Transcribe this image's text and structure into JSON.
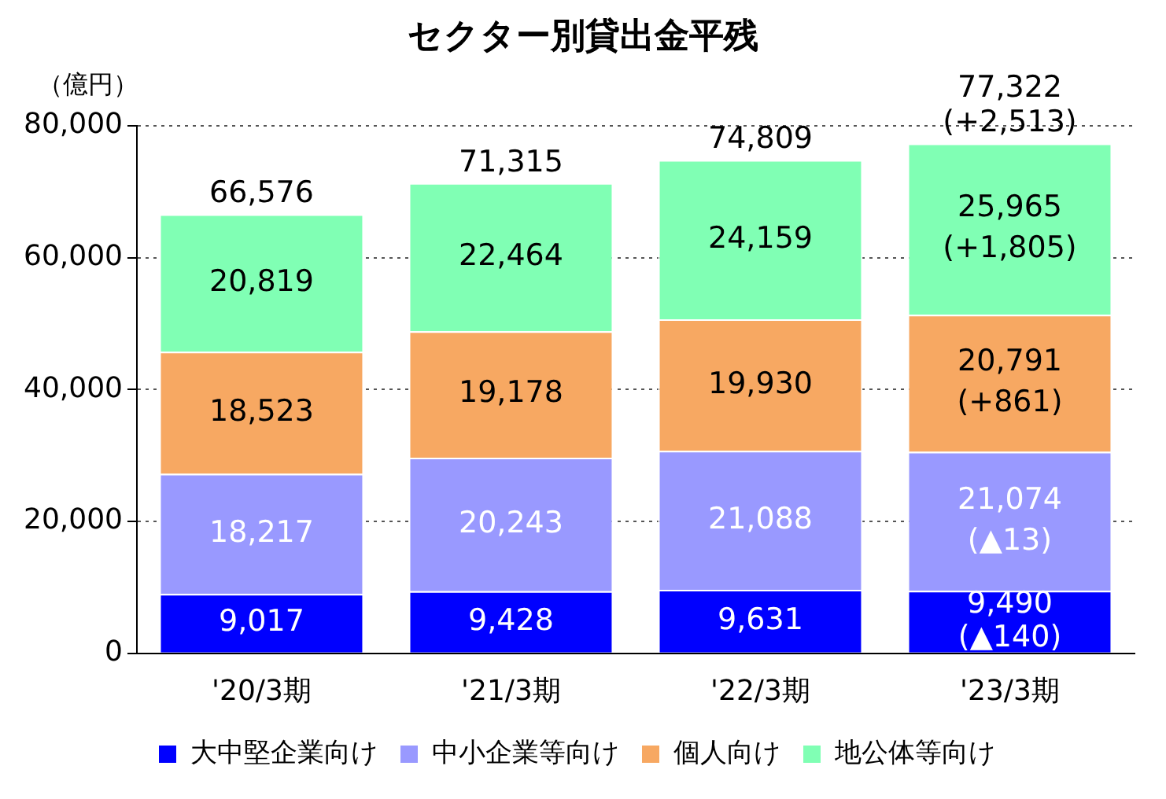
{
  "chart_data": {
    "type": "bar",
    "stacked": true,
    "title": "セクター別貸出金平残",
    "ylabel": "（億円）",
    "categories": [
      "'20/3期",
      "'21/3期",
      "'22/3期",
      "'23/3期"
    ],
    "series": [
      {
        "name": "大中堅企業向け",
        "color": "#0000ff",
        "values": [
          9017,
          9428,
          9631,
          9490
        ],
        "value_labels": [
          "9,017",
          "9,428",
          "9,631",
          "9,490\n(▲140)"
        ]
      },
      {
        "name": "中小企業等向け",
        "color": "#9999ff",
        "values": [
          18217,
          20243,
          21088,
          21074
        ],
        "value_labels": [
          "18,217",
          "20,243",
          "21,088",
          "21,074\n(▲13)"
        ]
      },
      {
        "name": "個人向け",
        "color": "#f7a862",
        "values": [
          18523,
          19178,
          19930,
          20791
        ],
        "value_labels": [
          "18,523",
          "19,178",
          "19,930",
          "20,791\n(+861)"
        ]
      },
      {
        "name": "地公体等向け",
        "color": "#80ffb4",
        "values": [
          20819,
          22464,
          24159,
          25965
        ],
        "value_labels": [
          "20,819",
          "22,464",
          "24,159",
          "25,965\n(+1,805)"
        ]
      }
    ],
    "totals": [
      "66,576",
      "71,315",
      "74,809",
      "77,322\n(+2,513)"
    ],
    "ylim": [
      0,
      80000
    ],
    "yticks": [
      0,
      {
        "value": 20000,
        "label": "20,000"
      },
      {
        "value": 40000,
        "label": "40,000"
      },
      {
        "value": 60000,
        "label": "60,000"
      },
      {
        "value": 80000,
        "label": "80,000"
      }
    ],
    "grid": "y",
    "legend": "bottom"
  }
}
